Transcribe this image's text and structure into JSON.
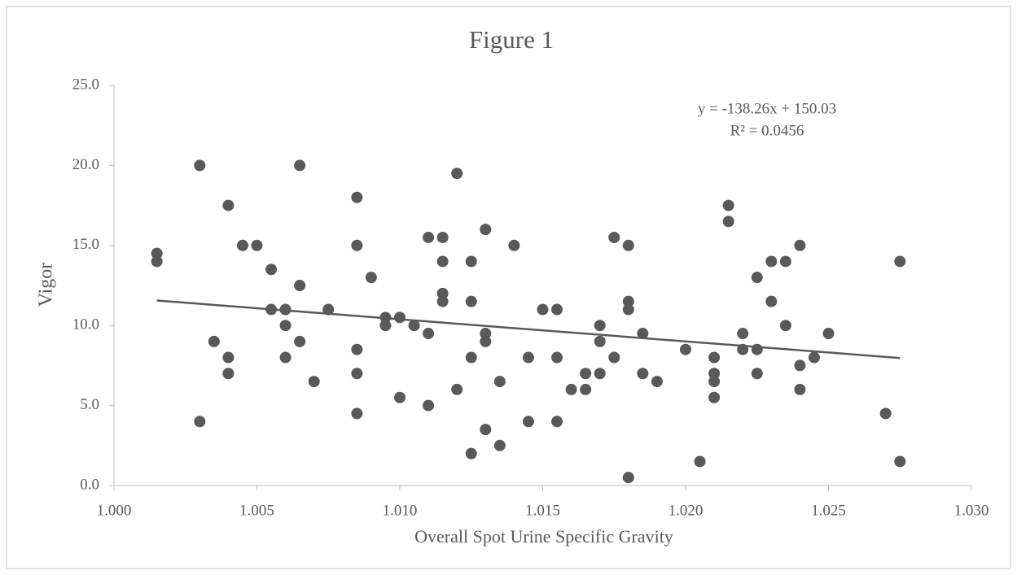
{
  "chart_data": {
    "type": "scatter",
    "title": "Figure 1",
    "xlabel": "Overall Spot Urine Specific Gravity",
    "ylabel": "Vigor",
    "x": [
      1.0015,
      1.0015,
      1.003,
      1.003,
      1.0035,
      1.004,
      1.004,
      1.004,
      1.0045,
      1.005,
      1.0055,
      1.0055,
      1.006,
      1.006,
      1.006,
      1.0065,
      1.0065,
      1.0065,
      1.007,
      1.0075,
      1.0085,
      1.0085,
      1.0085,
      1.0085,
      1.0085,
      1.009,
      1.0095,
      1.0095,
      1.01,
      1.01,
      1.0105,
      1.011,
      1.011,
      1.011,
      1.0115,
      1.0115,
      1.0115,
      1.0115,
      1.012,
      1.012,
      1.0125,
      1.0125,
      1.0125,
      1.0125,
      1.013,
      1.013,
      1.013,
      1.013,
      1.0135,
      1.0135,
      1.014,
      1.0145,
      1.0145,
      1.015,
      1.0155,
      1.0155,
      1.0155,
      1.016,
      1.0165,
      1.0165,
      1.017,
      1.017,
      1.017,
      1.0175,
      1.0175,
      1.018,
      1.018,
      1.018,
      1.018,
      1.0185,
      1.0185,
      1.019,
      1.02,
      1.0205,
      1.021,
      1.021,
      1.021,
      1.021,
      1.0215,
      1.0215,
      1.022,
      1.022,
      1.0225,
      1.0225,
      1.0225,
      1.023,
      1.023,
      1.0235,
      1.0235,
      1.024,
      1.024,
      1.024,
      1.0245,
      1.025,
      1.027,
      1.0275,
      1.0275
    ],
    "values": [
      14.5,
      14,
      20,
      4,
      9,
      17.5,
      8,
      7,
      15,
      15,
      13.5,
      11,
      11,
      10,
      8,
      20,
      12.5,
      9,
      6.5,
      11,
      18,
      15,
      8.5,
      7,
      4.5,
      13,
      10.5,
      10,
      10.5,
      5.5,
      10,
      15.5,
      9.5,
      5,
      15.5,
      14,
      12,
      11.5,
      19.5,
      6,
      14,
      11.5,
      8,
      2,
      16,
      9.5,
      9,
      3.5,
      6.5,
      2.5,
      15,
      8,
      4,
      11,
      11,
      8,
      4,
      6,
      7,
      6,
      10,
      9,
      7,
      15.5,
      8,
      15,
      11.5,
      11,
      0.5,
      9.5,
      7,
      6.5,
      8.5,
      1.5,
      8,
      7,
      6.5,
      5.5,
      17.5,
      16.5,
      9.5,
      8.5,
      13,
      8.5,
      7,
      14,
      11.5,
      14,
      10,
      15,
      7.5,
      6,
      8,
      9.5,
      4.5,
      14,
      1.5
    ],
    "color": "#595959",
    "trendline": {
      "slope": -138.26,
      "intercept": 150.03,
      "label": "y = -138.26x + 150.03",
      "r2_label": "R² = 0.0456"
    },
    "xlim": [
      1.0,
      1.03
    ],
    "xticks": [
      {
        "value": 1.0,
        "label": "1.000"
      },
      {
        "value": 1.005,
        "label": "1.005"
      },
      {
        "value": 1.01,
        "label": "1.010"
      },
      {
        "value": 1.015,
        "label": "1.015"
      },
      {
        "value": 1.02,
        "label": "1.020"
      },
      {
        "value": 1.025,
        "label": "1.025"
      },
      {
        "value": 1.03,
        "label": "1.030"
      }
    ],
    "ylim": [
      0,
      25
    ],
    "yticks": [
      {
        "value": 0,
        "label": "0.0"
      },
      {
        "value": 5,
        "label": "5.0"
      },
      {
        "value": 10,
        "label": "10.0"
      },
      {
        "value": 15,
        "label": "15.0"
      },
      {
        "value": 20,
        "label": "20.0"
      },
      {
        "value": 25,
        "label": "25.0"
      }
    ],
    "grid": false
  }
}
